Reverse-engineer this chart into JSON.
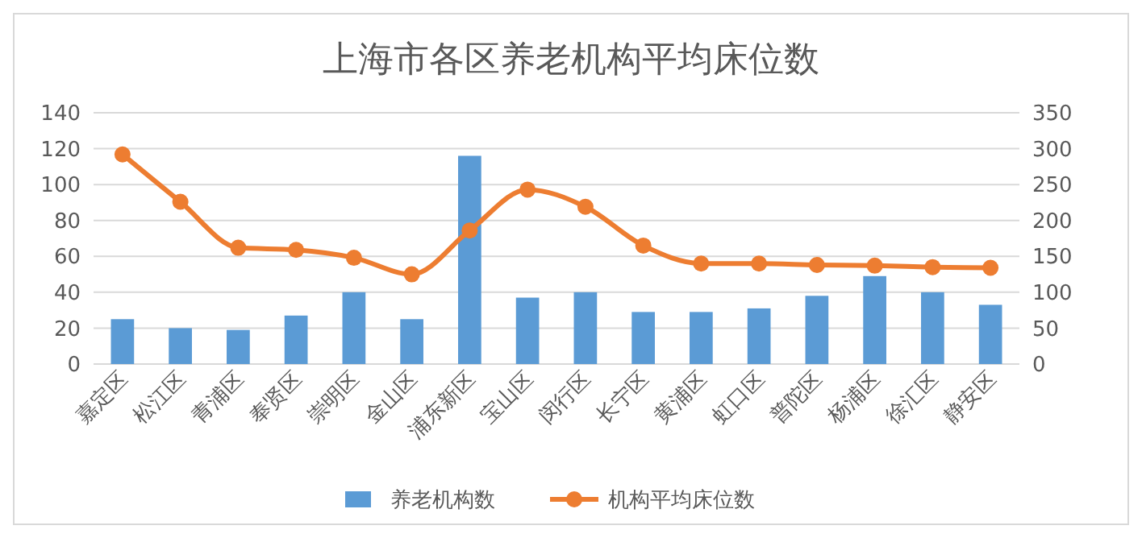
{
  "chart_data": {
    "type": "bar",
    "title": "上海市各区养老机构平均床位数",
    "categories": [
      "嘉定区",
      "松江区",
      "青浦区",
      "奉贤区",
      "崇明区",
      "金山区",
      "浦东新区",
      "宝山区",
      "闵行区",
      "长宁区",
      "黄浦区",
      "虹口区",
      "普陀区",
      "杨浦区",
      "徐汇区",
      "静安区"
    ],
    "series": [
      {
        "name": "养老机构数",
        "color": "#5b9bd5",
        "values": [
          25,
          20,
          19,
          27,
          40,
          25,
          116,
          37,
          40,
          29,
          29,
          31,
          38,
          49,
          40,
          33
        ]
      },
      {
        "name": "机构平均床位数",
        "color": "#ed7d31",
        "type": "line",
        "axis": "y2",
        "values": [
          292,
          226,
          162,
          159,
          148,
          125,
          186,
          243,
          219,
          165,
          140,
          140,
          138,
          137,
          135,
          134
        ]
      }
    ],
    "ylim": [
      0,
      140
    ],
    "yticks": [
      0,
      20,
      40,
      60,
      80,
      100,
      120,
      140
    ],
    "y2lim": [
      0,
      350
    ],
    "y2ticks": [
      0,
      50,
      100,
      150,
      200,
      250,
      300,
      350
    ],
    "grid": "y",
    "legend": "bottom",
    "marker": "circle"
  }
}
